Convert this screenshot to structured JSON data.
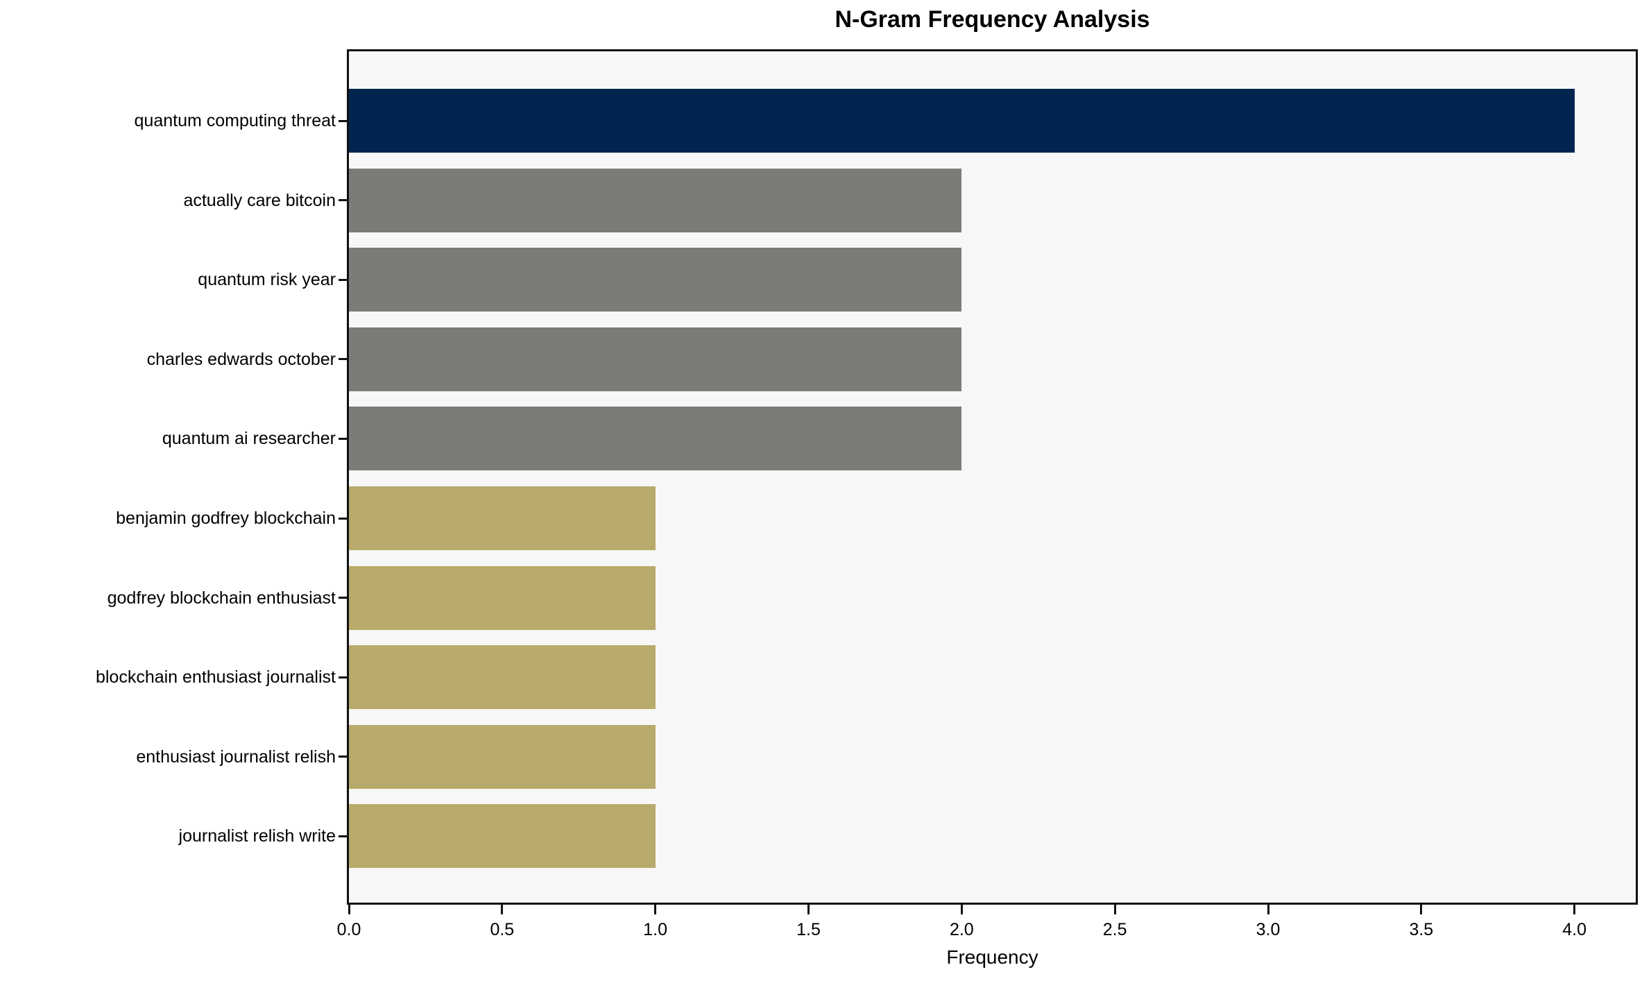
{
  "chart_data": {
    "type": "bar",
    "orientation": "horizontal",
    "title": "N-Gram Frequency Analysis",
    "xlabel": "Frequency",
    "ylabel": "",
    "categories": [
      "quantum computing threat",
      "actually care bitcoin",
      "quantum risk year",
      "charles edwards october",
      "quantum ai researcher",
      "benjamin godfrey blockchain",
      "godfrey blockchain enthusiast",
      "blockchain enthusiast journalist",
      "enthusiast journalist relish",
      "journalist relish write"
    ],
    "values": [
      4,
      2,
      2,
      2,
      2,
      1,
      1,
      1,
      1,
      1
    ],
    "bar_colors": [
      "#02254f",
      "#7b7b78",
      "#7b7b78",
      "#7b7b78",
      "#7b7b78",
      "#b8aa6b",
      "#b8aa6b",
      "#b8aa6b",
      "#b8aa6b",
      "#b8aa6b"
    ],
    "xlim": [
      0,
      4.2
    ],
    "xticks": [
      0.0,
      0.5,
      1.0,
      1.5,
      2.0,
      2.5,
      3.0,
      3.5,
      4.0
    ],
    "xtick_labels": [
      "0.0",
      "0.5",
      "1.0",
      "1.5",
      "2.0",
      "2.5",
      "3.0",
      "3.5",
      "4.0"
    ],
    "grid": false,
    "legend": false
  },
  "colors": {
    "plot_background": "#f7f7f7",
    "page_background": "#ffffff",
    "axis_line": "#111111",
    "text": "#000000"
  }
}
